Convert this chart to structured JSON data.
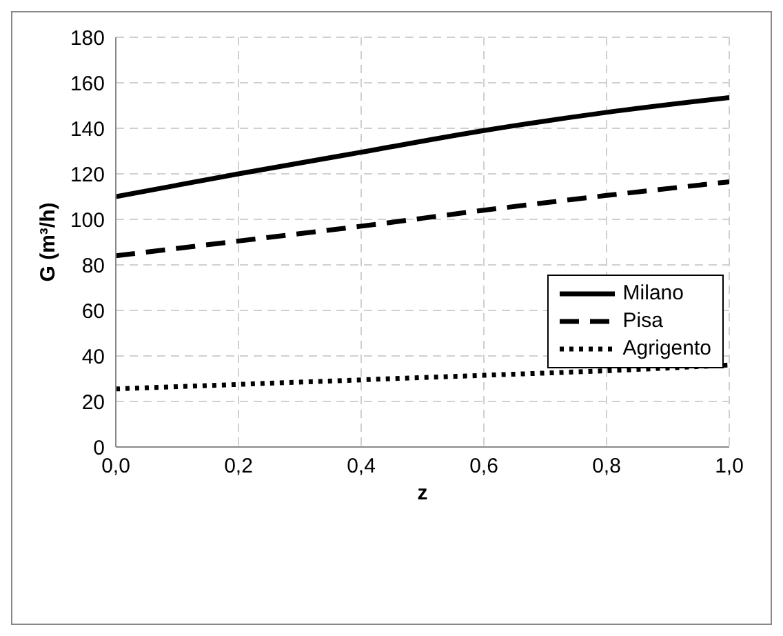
{
  "chart_data": {
    "type": "line",
    "xlabel": "z",
    "ylabel": "G (m³/h)",
    "x": [
      0,
      0.2,
      0.4,
      0.6,
      0.8,
      1.0
    ],
    "series": [
      {
        "name": "Milano",
        "color": "#000000",
        "line_style": "solid",
        "values": [
          110,
          120,
          129.5,
          139,
          147,
          153.5
        ]
      },
      {
        "name": "Pisa",
        "color": "#000000",
        "line_style": "dashed",
        "values": [
          84,
          90.5,
          97,
          104,
          110.5,
          116.5
        ]
      },
      {
        "name": "Agrigento",
        "color": "#000000",
        "line_style": "dotted",
        "values": [
          25.5,
          27.5,
          29.5,
          31.5,
          33.5,
          36
        ]
      }
    ],
    "xlim": [
      0,
      1
    ],
    "xticks": [
      {
        "value": 0,
        "label": "0,0"
      },
      {
        "value": 0.2,
        "label": "0,2"
      },
      {
        "value": 0.4,
        "label": "0,4"
      },
      {
        "value": 0.6,
        "label": "0,6"
      },
      {
        "value": 0.8,
        "label": "0,8"
      },
      {
        "value": 1,
        "label": "1,0"
      }
    ],
    "ylim": [
      0,
      180
    ],
    "yticks": [
      0,
      20,
      40,
      60,
      80,
      100,
      120,
      140,
      160,
      180
    ],
    "grid": true,
    "legend": "right",
    "marker": "none"
  }
}
